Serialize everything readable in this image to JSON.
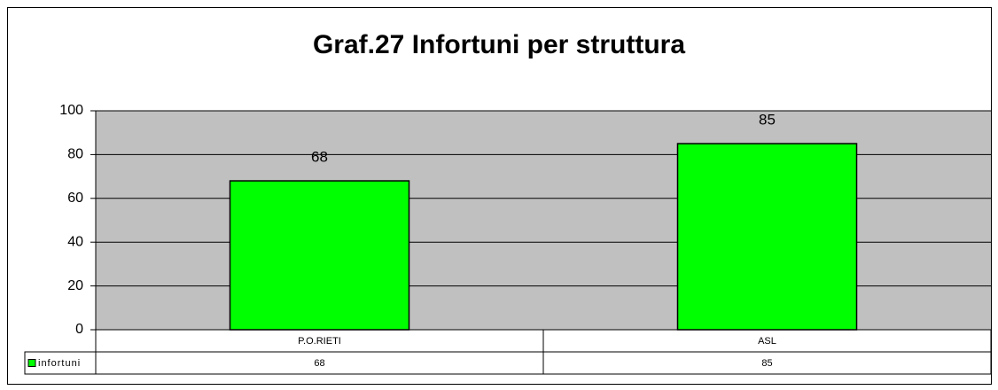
{
  "chart_data": {
    "type": "bar",
    "title": "Graf.27  Infortuni per struttura",
    "categories": [
      "P.O.RIETI",
      "ASL"
    ],
    "series": [
      {
        "name": "infortuni",
        "color": "#00ff00",
        "values": [
          68,
          85
        ]
      }
    ],
    "ylim": [
      0,
      100
    ],
    "yticks": [
      0,
      20,
      40,
      60,
      80,
      100
    ],
    "grid": true
  }
}
